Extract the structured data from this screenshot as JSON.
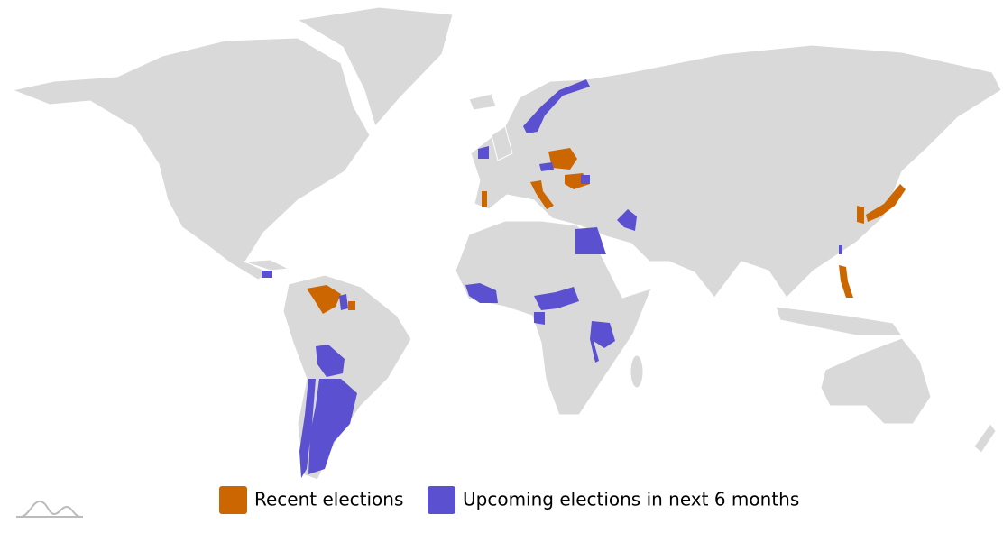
{
  "legend": {
    "items": [
      {
        "label": "Recent elections",
        "color": "#cc6600"
      },
      {
        "label": "Upcoming elections in next 6 months",
        "color": "#5a50d0"
      }
    ]
  }
}
